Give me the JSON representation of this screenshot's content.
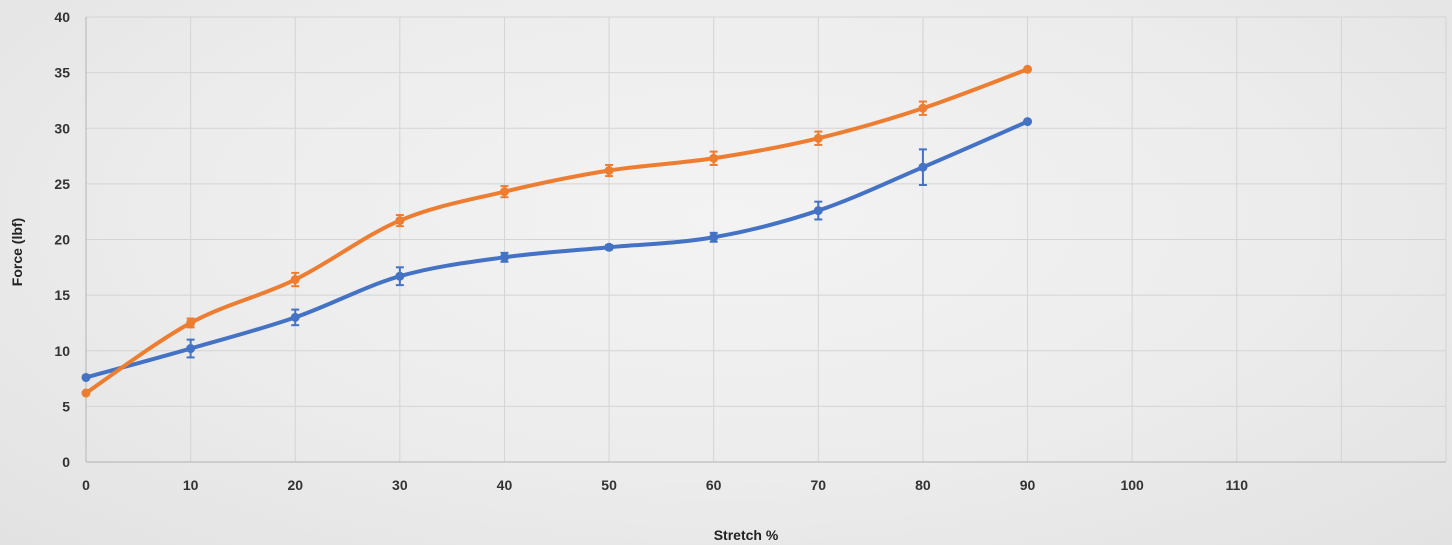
{
  "chart_data": {
    "type": "line",
    "xlabel": "Stretch %",
    "ylabel": "Force (lbf)",
    "xlim": [
      0,
      130
    ],
    "ylim": [
      0,
      40
    ],
    "x_ticks": [
      0,
      10,
      20,
      30,
      40,
      50,
      60,
      70,
      80,
      90,
      100,
      110
    ],
    "y_ticks": [
      0,
      5,
      10,
      15,
      20,
      25,
      30,
      35,
      40
    ],
    "grid": true,
    "legend": "none",
    "smooth": true,
    "series": [
      {
        "color": "#4472c4",
        "x": [
          0,
          10,
          20,
          30,
          40,
          50,
          60,
          70,
          80,
          90
        ],
        "y": [
          7.6,
          10.2,
          13.0,
          16.7,
          18.4,
          19.3,
          20.2,
          22.6,
          26.5,
          30.6
        ],
        "error": [
          0,
          0.8,
          0.7,
          0.8,
          0.4,
          0.2,
          0.4,
          0.8,
          1.6,
          0
        ]
      },
      {
        "color": "#ed7d31",
        "x": [
          0,
          10,
          20,
          30,
          40,
          50,
          60,
          70,
          80,
          90
        ],
        "y": [
          6.2,
          12.5,
          16.4,
          21.7,
          24.3,
          26.2,
          27.3,
          29.1,
          31.8,
          35.3
        ],
        "error": [
          0,
          0.4,
          0.6,
          0.5,
          0.5,
          0.5,
          0.6,
          0.6,
          0.6,
          0
        ]
      }
    ]
  }
}
